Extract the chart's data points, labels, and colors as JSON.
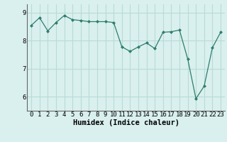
{
  "x": [
    0,
    1,
    2,
    3,
    4,
    5,
    6,
    7,
    8,
    9,
    10,
    11,
    12,
    13,
    14,
    15,
    16,
    17,
    18,
    19,
    20,
    21,
    22,
    23
  ],
  "y": [
    8.55,
    8.82,
    8.35,
    8.65,
    8.9,
    8.75,
    8.72,
    8.68,
    8.68,
    8.68,
    8.65,
    7.78,
    7.62,
    7.78,
    7.92,
    7.72,
    8.3,
    8.32,
    8.38,
    7.35,
    5.93,
    6.38,
    7.75,
    8.3
  ],
  "line_color": "#2e7d6e",
  "marker": "D",
  "marker_size": 2.5,
  "bg_color": "#d9f0ee",
  "grid_color": "#b8dbd8",
  "xlabel": "Humidex (Indice chaleur)",
  "ylim": [
    5.5,
    9.3
  ],
  "xlim": [
    -0.5,
    23.5
  ],
  "yticks": [
    6,
    7,
    8,
    9
  ],
  "xticks": [
    0,
    1,
    2,
    3,
    4,
    5,
    6,
    7,
    8,
    9,
    10,
    11,
    12,
    13,
    14,
    15,
    16,
    17,
    18,
    19,
    20,
    21,
    22,
    23
  ],
  "label_fontsize": 7.5,
  "tick_fontsize": 6.5
}
